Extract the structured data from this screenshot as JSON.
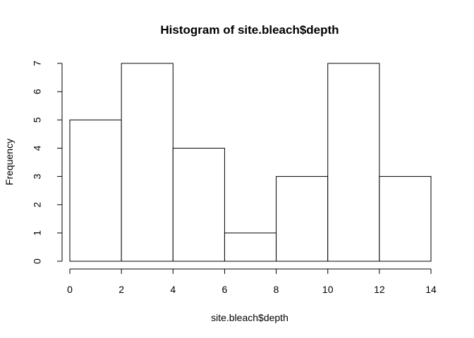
{
  "chart_data": {
    "type": "bar",
    "title": "Histogram of site.bleach$depth",
    "xlabel": "site.bleach$depth",
    "ylabel": "Frequency",
    "bins": [
      {
        "from": 0,
        "to": 2,
        "count": 5
      },
      {
        "from": 2,
        "to": 4,
        "count": 7
      },
      {
        "from": 4,
        "to": 6,
        "count": 4
      },
      {
        "from": 6,
        "to": 8,
        "count": 1
      },
      {
        "from": 8,
        "to": 10,
        "count": 3
      },
      {
        "from": 10,
        "to": 12,
        "count": 7
      },
      {
        "from": 12,
        "to": 14,
        "count": 3
      }
    ],
    "xlim": [
      0,
      14
    ],
    "ylim": [
      0,
      7
    ],
    "xticks": [
      "0",
      "2",
      "4",
      "6",
      "8",
      "10",
      "12",
      "14"
    ],
    "yticks": [
      "0",
      "1",
      "2",
      "3",
      "4",
      "5",
      "6",
      "7"
    ],
    "bar_fill": "#ffffff",
    "bar_stroke": "#000000",
    "grid": false,
    "legend": "none"
  }
}
